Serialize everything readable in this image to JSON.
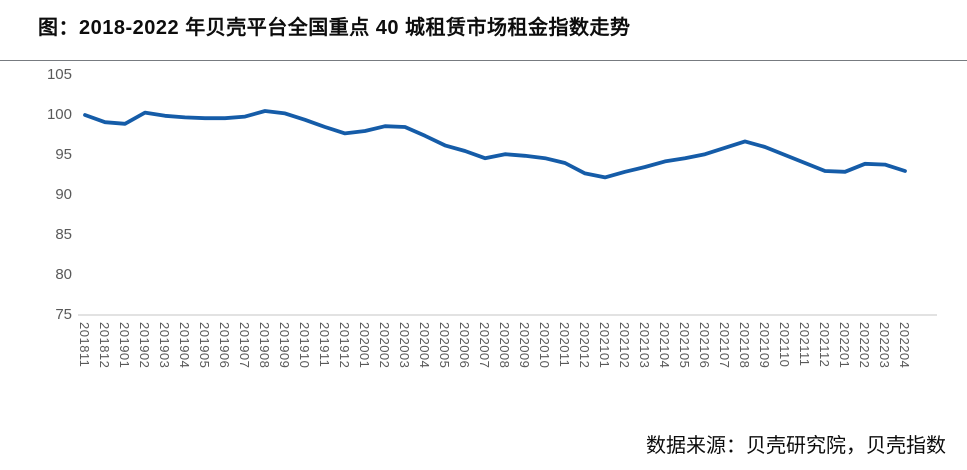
{
  "page": {
    "title": "图：2018-2022 年贝壳平台全国重点 40 城租赁市场租金指数走势",
    "source_note": "数据来源：贝壳研究院，贝壳指数"
  },
  "colors": {
    "line": "#155CA8",
    "axis_label": "#595959",
    "baseline": "#D9D9D9",
    "title_text": "#0D0D0D",
    "divider": "#777B80",
    "background": "#FFFFFF"
  },
  "chart_data": {
    "type": "line",
    "title": "图：2018-2022 年贝壳平台全国重点 40 城租赁市场租金指数走势",
    "xlabel": "",
    "ylabel": "",
    "ylim": [
      75,
      105
    ],
    "yticks": [
      105,
      100,
      95,
      90,
      85,
      80,
      75
    ],
    "grid": "off",
    "legend": "none",
    "source": "数据来源：贝壳研究院，贝壳指数",
    "categories": [
      "201811",
      "201812",
      "201901",
      "201902",
      "201903",
      "201904",
      "201905",
      "201906",
      "201907",
      "201908",
      "201909",
      "201910",
      "201911",
      "201912",
      "202001",
      "202002",
      "202003",
      "202004",
      "202005",
      "202006",
      "202007",
      "202008",
      "202009",
      "202010",
      "202011",
      "202012",
      "202101",
      "202102",
      "202103",
      "202104",
      "202105",
      "202106",
      "202107",
      "202108",
      "202109",
      "202110",
      "202111",
      "202112",
      "202201",
      "202202",
      "202203",
      "202204"
    ],
    "values": [
      100.0,
      99.1,
      98.9,
      100.3,
      99.9,
      99.7,
      99.6,
      99.6,
      99.8,
      100.5,
      100.2,
      99.4,
      98.5,
      97.7,
      98.0,
      98.6,
      98.5,
      97.4,
      96.2,
      95.5,
      94.6,
      95.1,
      94.9,
      94.6,
      94.0,
      92.7,
      92.2,
      92.9,
      93.5,
      94.2,
      94.6,
      95.1,
      95.9,
      96.7,
      96.0,
      95.0,
      94.0,
      93.0,
      92.9,
      93.9,
      93.8,
      93.0
    ]
  }
}
